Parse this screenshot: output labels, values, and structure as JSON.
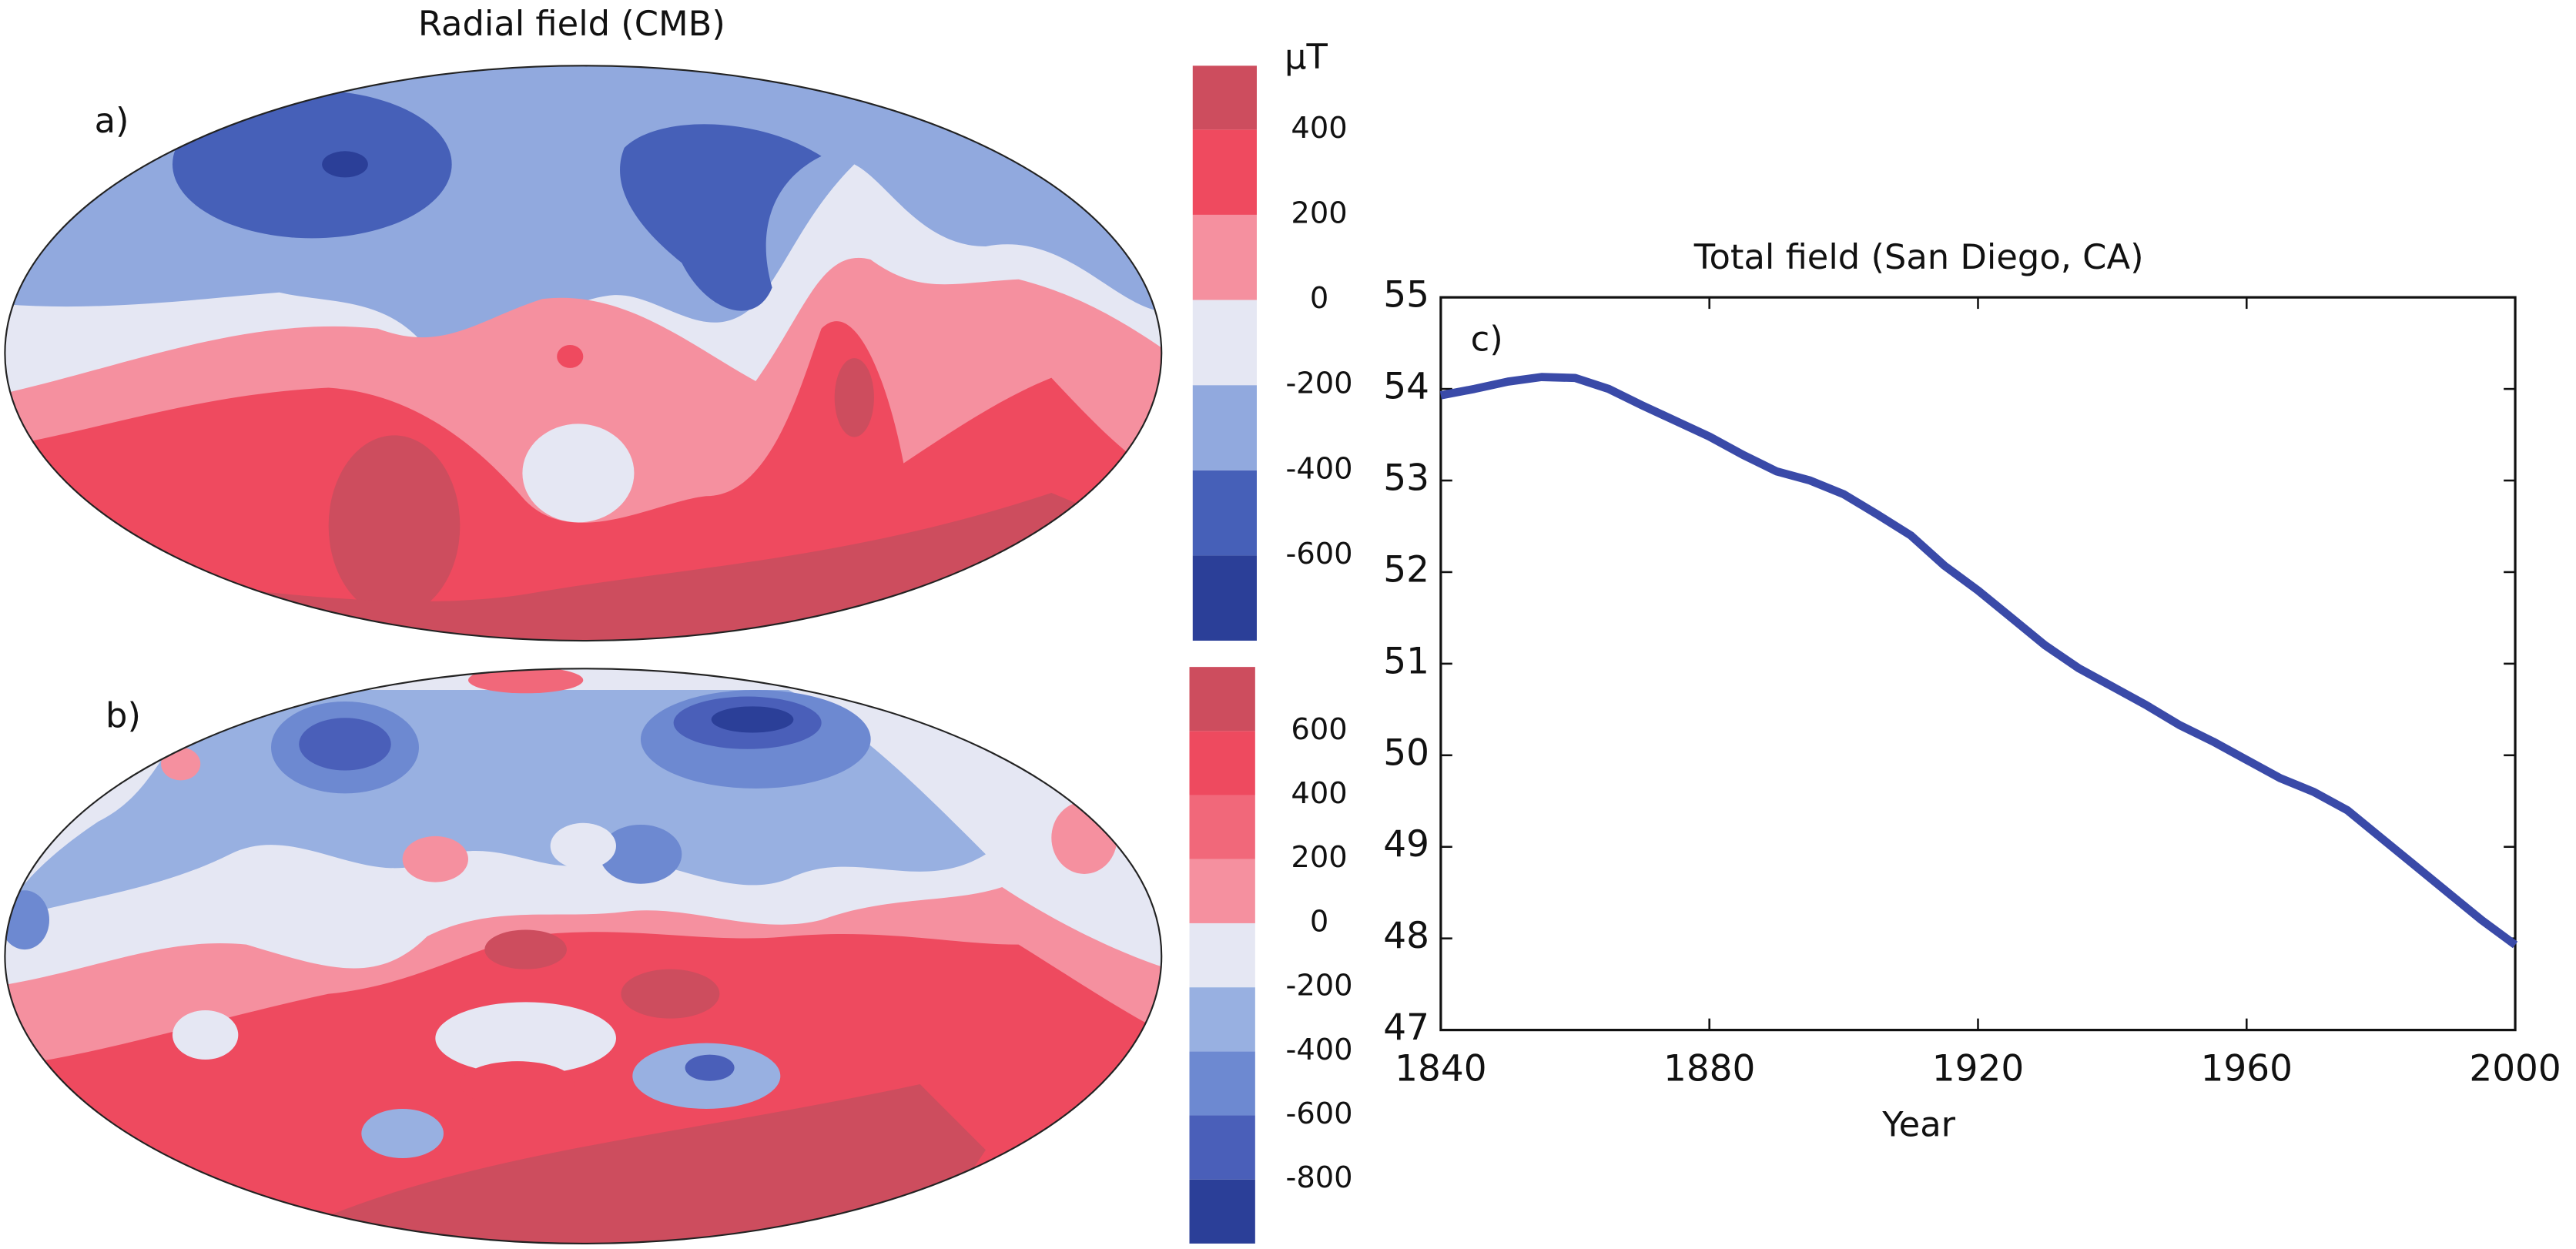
{
  "chart_data": [
    {
      "type": "map",
      "title": "Radial field (CMB)",
      "panel_label": "a)",
      "colorbar_label": "µT",
      "colorbar": {
        "clim": [
          -800,
          550
        ],
        "ticks": [
          -600,
          -400,
          -200,
          0,
          200,
          400
        ],
        "colors": [
          "#2b3f98",
          "#4660b8",
          "#91a9de",
          "#e5e7f3",
          "#f5909f",
          "#ef4a5f",
          "#cd4d5e"
        ]
      }
    },
    {
      "type": "map",
      "panel_label": "b)",
      "colorbar": {
        "clim": [
          -1000,
          800
        ],
        "ticks": [
          -800,
          -600,
          -400,
          -200,
          0,
          200,
          400,
          600
        ],
        "colors": [
          "#2b3f98",
          "#4a5fb9",
          "#6d89d1",
          "#98b0e1",
          "#e5e7f3",
          "#f5909f",
          "#f1687a",
          "#ee4a5f",
          "#cd4d5e"
        ]
      }
    },
    {
      "type": "line",
      "title": "Total field (San Diego, CA)",
      "panel_label": "c)",
      "xlabel": "Year",
      "x": [
        1840,
        1845,
        1850,
        1855,
        1860,
        1865,
        1870,
        1875,
        1880,
        1885,
        1890,
        1895,
        1900,
        1905,
        1910,
        1915,
        1920,
        1925,
        1930,
        1935,
        1940,
        1945,
        1950,
        1955,
        1960,
        1965,
        1970,
        1975,
        1980,
        1985,
        1990,
        1995,
        2000
      ],
      "values": [
        53.93,
        54.0,
        54.08,
        54.13,
        54.12,
        54.0,
        53.82,
        53.65,
        53.48,
        53.28,
        53.1,
        53.0,
        52.85,
        52.63,
        52.4,
        52.07,
        51.8,
        51.5,
        51.2,
        50.95,
        50.75,
        50.55,
        50.33,
        50.15,
        49.95,
        49.75,
        49.6,
        49.4,
        49.1,
        48.8,
        48.5,
        48.2,
        47.93
      ],
      "color": "#3a4aa8",
      "xlim": [
        1840,
        2000
      ],
      "xticks": [
        1840,
        1880,
        1920,
        1960,
        2000
      ],
      "ylim": [
        47,
        55
      ],
      "yticks": [
        47,
        48,
        49,
        50,
        51,
        52,
        53,
        54,
        55
      ]
    }
  ]
}
